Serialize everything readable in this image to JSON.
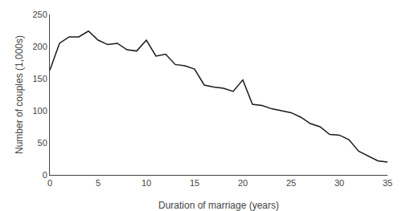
{
  "chart_data": {
    "type": "line",
    "x": [
      0,
      1,
      2,
      3,
      4,
      5,
      6,
      7,
      8,
      9,
      10,
      11,
      12,
      13,
      14,
      15,
      16,
      17,
      18,
      19,
      20,
      21,
      22,
      23,
      24,
      25,
      26,
      27,
      28,
      29,
      30,
      31,
      32,
      33,
      34,
      35
    ],
    "values": [
      163,
      205,
      215,
      215,
      224,
      210,
      203,
      205,
      195,
      193,
      210,
      185,
      188,
      172,
      170,
      165,
      140,
      137,
      135,
      130,
      148,
      110,
      108,
      103,
      100,
      97,
      90,
      80,
      75,
      63,
      62,
      55,
      37,
      30,
      22,
      20
    ],
    "xlabel": "Duration of marriage (years)",
    "ylabel": "Number of couples (1,000s)",
    "xlim": [
      0,
      35
    ],
    "ylim": [
      0,
      250
    ],
    "xticks": [
      0,
      5,
      10,
      15,
      20,
      25,
      30,
      35
    ],
    "yticks": [
      0,
      50,
      100,
      150,
      200,
      250
    ],
    "color": "#1a1a1a",
    "grid": false
  }
}
